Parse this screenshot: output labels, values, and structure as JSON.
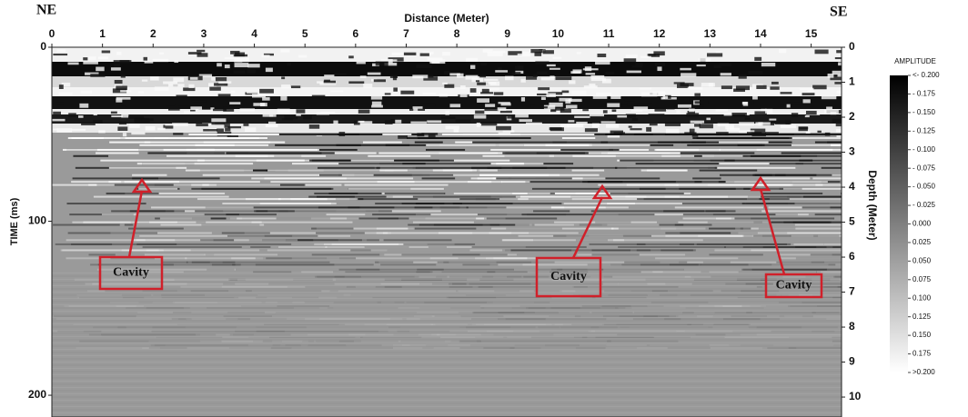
{
  "chart_data": {
    "type": "radargram",
    "left_label": "NE",
    "right_label": "SE",
    "xlabel": "Distance (Meter)",
    "ylabel": "TIME (ms)",
    "y2label": "Depth (Meter)",
    "xlim": [
      0,
      15.6
    ],
    "xticks": [
      0,
      1,
      2,
      3,
      4,
      5,
      6,
      7,
      8,
      9,
      10,
      11,
      12,
      13,
      14,
      15
    ],
    "ylim": [
      0,
      212.5
    ],
    "yticks": [
      0,
      100,
      200
    ],
    "y2lim": [
      0,
      10.57
    ],
    "y2ticks": [
      0,
      1,
      2,
      3,
      4,
      5,
      6,
      7,
      8,
      9,
      10
    ],
    "colorbar": {
      "label": "AMPLITUDE",
      "lim": [
        -0.2,
        0.2
      ],
      "ticks": [
        {
          "value": -0.2,
          "label": "<- 0.200"
        },
        {
          "value": -0.175,
          "label": "- 0.175"
        },
        {
          "value": -0.15,
          "label": "- 0.150"
        },
        {
          "value": -0.125,
          "label": "- 0.125"
        },
        {
          "value": -0.1,
          "label": "- 0.100"
        },
        {
          "value": -0.075,
          "label": "- 0.075"
        },
        {
          "value": -0.05,
          "label": "- 0.050"
        },
        {
          "value": -0.025,
          "label": "- 0.025"
        },
        {
          "value": 0,
          "label": "0.000"
        },
        {
          "value": 0.025,
          "label": "0.025"
        },
        {
          "value": 0.05,
          "label": "0.050"
        },
        {
          "value": 0.075,
          "label": "0.075"
        },
        {
          "value": 0.1,
          "label": "0.100"
        },
        {
          "value": 0.125,
          "label": "0.125"
        },
        {
          "value": 0.15,
          "label": "0.150"
        },
        {
          "value": 0.175,
          "label": "0.175"
        },
        {
          "value": 0.2,
          "label": ">0.200"
        }
      ]
    },
    "annotations": [
      {
        "text": "Cavity"
      },
      {
        "text": "Cavity"
      },
      {
        "text": "Cavity"
      }
    ]
  }
}
